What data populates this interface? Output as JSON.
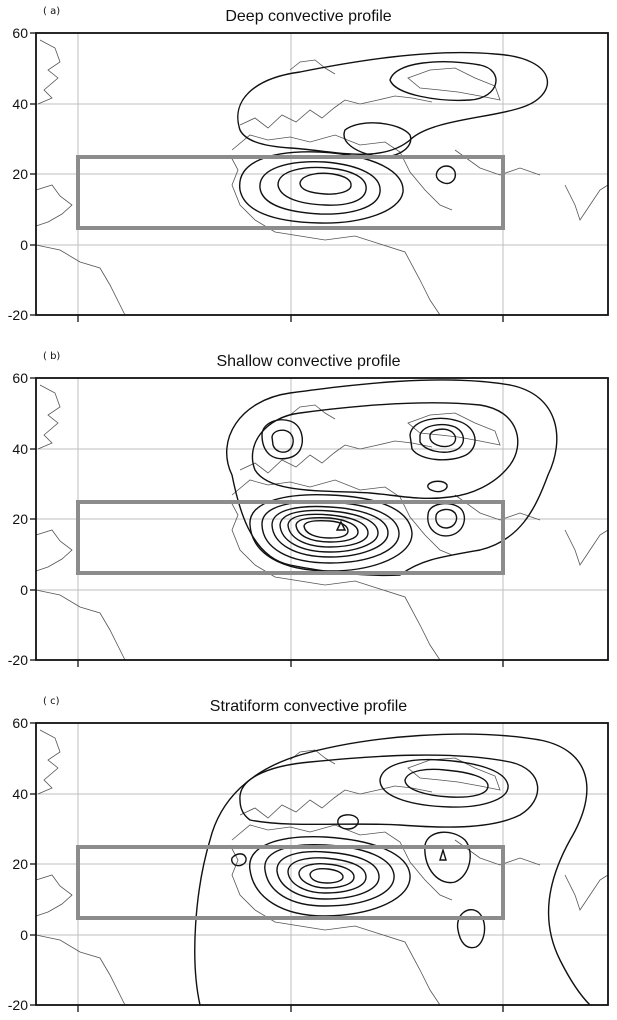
{
  "panels": [
    {
      "label": "( a)",
      "title": "Deep convective profile",
      "y_ticks": [
        "60",
        "40",
        "20",
        "0",
        "-20"
      ],
      "contour_levels": 4
    },
    {
      "label": "( b)",
      "title": "Shallow convective profile",
      "y_ticks": [
        "60",
        "40",
        "20",
        "0",
        "-20"
      ],
      "contour_levels": 10
    },
    {
      "label": "( c)",
      "title": "Stratiform convective profile",
      "y_ticks": [
        "60",
        "40",
        "20",
        "0",
        "-20"
      ],
      "contour_levels": 7
    }
  ],
  "map": {
    "lat_range": [
      -20,
      60
    ],
    "lon_range": [
      -80,
      70
    ],
    "region_box": {
      "lat": [
        5,
        25
      ],
      "lon": [
        -80,
        40
      ]
    },
    "colors": {
      "box": "#8c8c8c",
      "coast": "#555555",
      "grid": "#bfbfbf",
      "contour": "#111111",
      "frame": "#111111"
    }
  }
}
